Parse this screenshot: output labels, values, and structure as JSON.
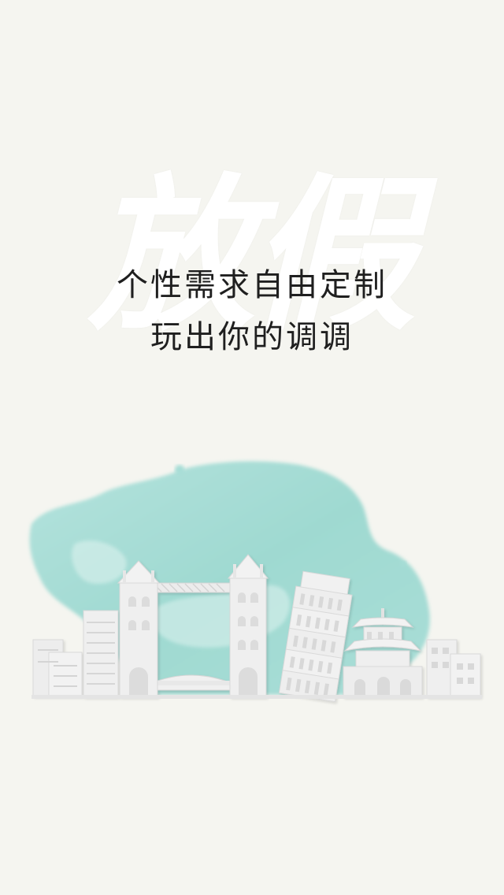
{
  "splash": {
    "calligraphy": "放假",
    "tagline": {
      "line1": "个性需求自由定制",
      "line2": "玩出你的调调"
    }
  },
  "colors": {
    "background": "#f5f5f0",
    "ink": "#1f1f1f",
    "watercolor": "#a6ddd6",
    "paper": "#efefef"
  }
}
